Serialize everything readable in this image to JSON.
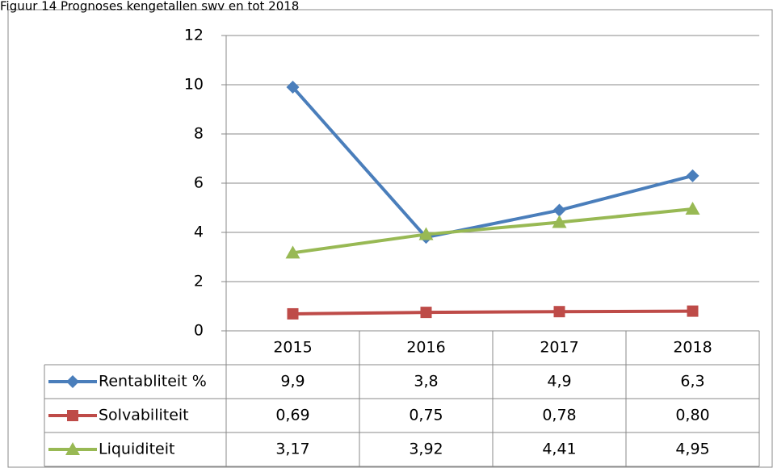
{
  "chart_data": {
    "type": "line",
    "title": "Figuur 14 Prognoses kengetallen swv en tot 2018",
    "categories": [
      "2015",
      "2016",
      "2017",
      "2018"
    ],
    "series": [
      {
        "name": "Rentabliteit %",
        "color": "#4a7ebb",
        "marker": "diamond",
        "values": [
          9.9,
          3.8,
          4.9,
          6.3
        ],
        "value_labels": [
          "9,9",
          "3,8",
          "4,9",
          "6,3"
        ]
      },
      {
        "name": "Solvabiliteit",
        "color": "#be4b48",
        "marker": "square",
        "values": [
          0.69,
          0.75,
          0.78,
          0.8
        ],
        "value_labels": [
          "0,69",
          "0,75",
          "0,78",
          "0,80"
        ]
      },
      {
        "name": "Liquiditeit",
        "color": "#98b954",
        "marker": "triangle",
        "values": [
          3.17,
          3.92,
          4.41,
          4.95
        ],
        "value_labels": [
          "3,17",
          "3,92",
          "4,41",
          "4,95"
        ]
      }
    ],
    "ylim": [
      0,
      12
    ],
    "yticks": [
      0,
      2,
      4,
      6,
      8,
      10,
      12
    ],
    "grid": true
  }
}
